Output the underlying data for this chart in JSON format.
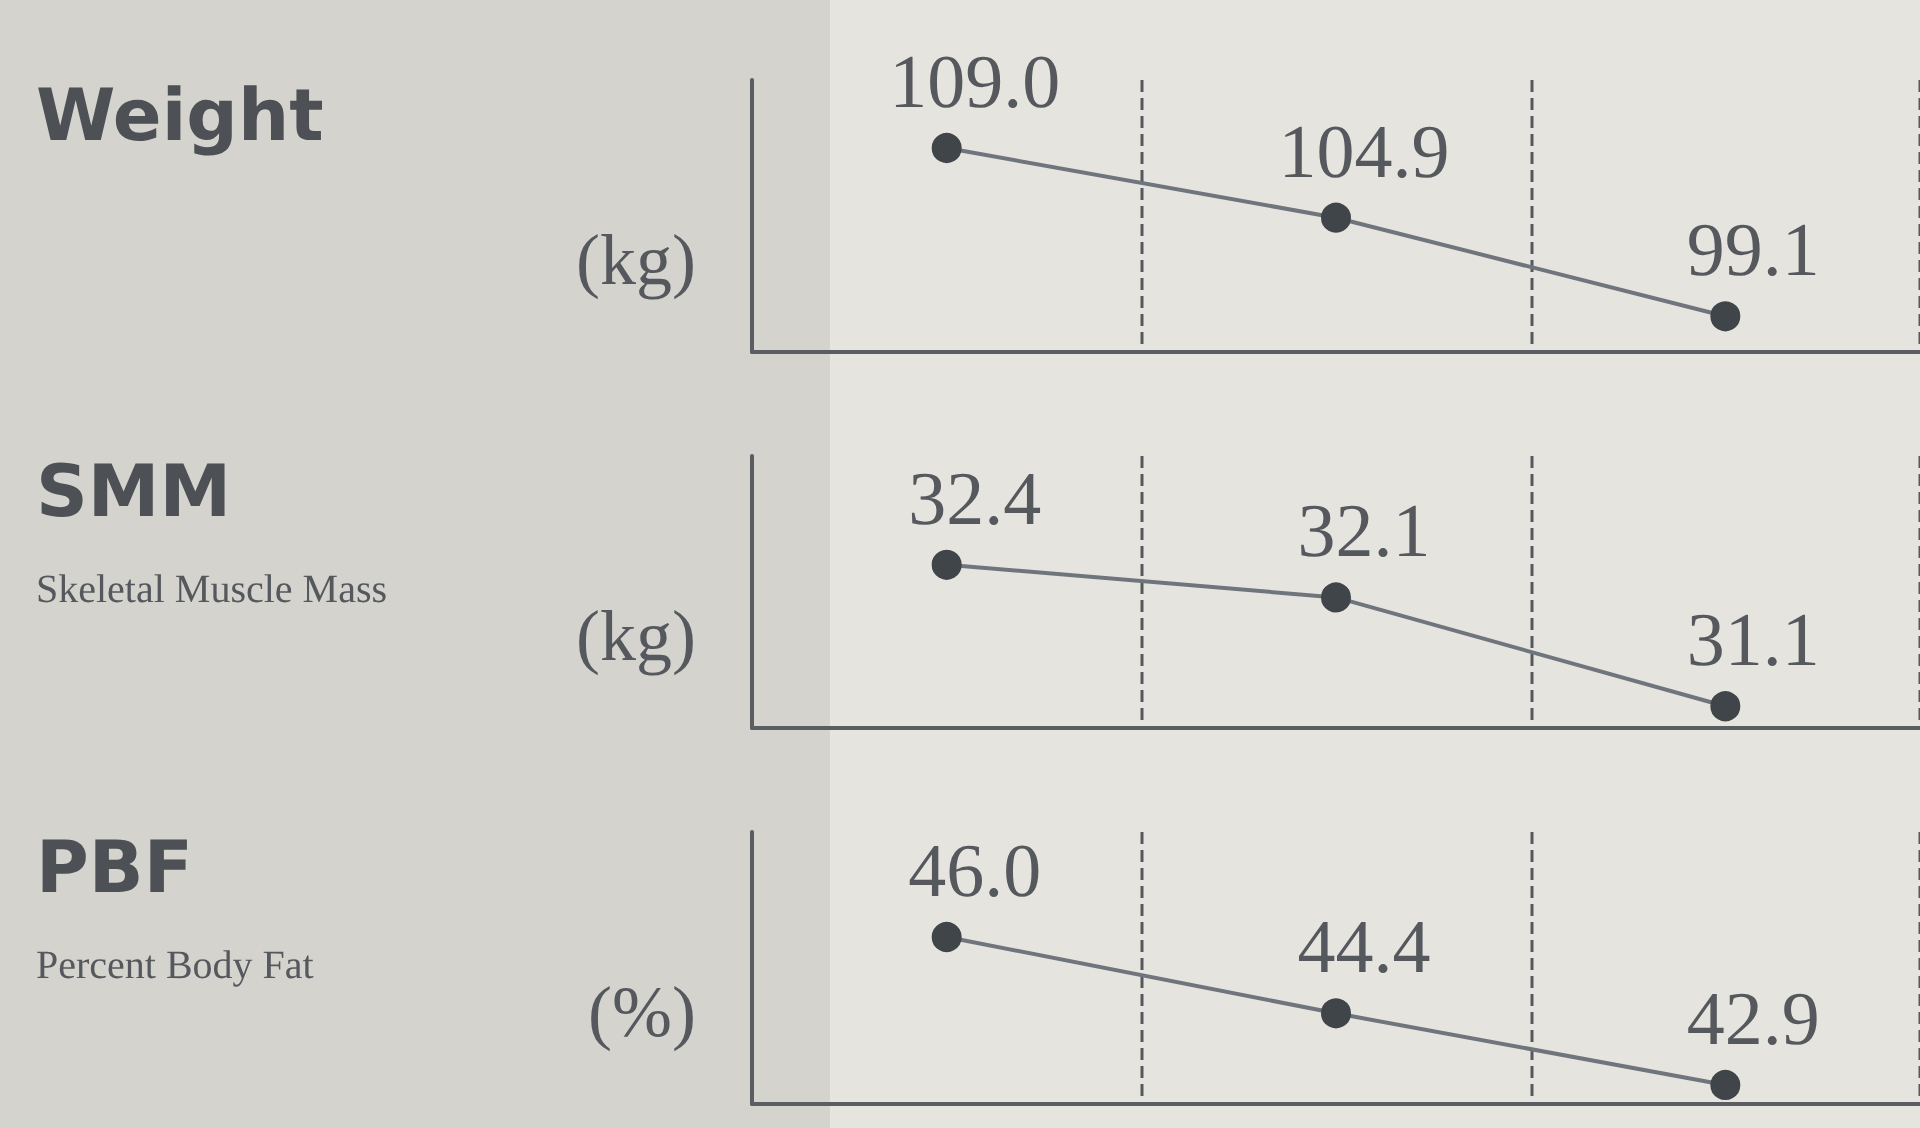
{
  "chart_data": [
    {
      "type": "line",
      "title": "Weight",
      "ylabel": "(kg)",
      "categories": [
        null,
        null,
        null
      ],
      "values": [
        109.0,
        104.9,
        99.1
      ],
      "value_labels": [
        "109.0",
        "104.9",
        "99.1"
      ],
      "color": "#6f757c",
      "ylim": [
        97,
        113
      ],
      "tick_labels": false,
      "grid": "x",
      "marker": "circle",
      "line_style": "solid"
    },
    {
      "type": "line",
      "annotations": [
        "SMM",
        "Skeletal Muscle Mass"
      ],
      "ylabel": "(kg)",
      "categories": [
        null,
        null,
        null
      ],
      "values": [
        32.4,
        32.1,
        31.1
      ],
      "value_labels": [
        "32.4",
        "32.1",
        "31.1"
      ],
      "color": "#6f757c",
      "ylim": [
        30.9,
        33.4
      ],
      "tick_labels": false,
      "grid": "x",
      "marker": "circle",
      "line_style": "solid"
    },
    {
      "type": "line",
      "annotations": [
        "PBF",
        "Percent Body Fat"
      ],
      "ylabel": "(%)",
      "categories": [
        null,
        null,
        null
      ],
      "values": [
        46.0,
        44.4,
        42.9
      ],
      "value_labels": [
        "46.0",
        "44.4",
        "42.9"
      ],
      "color": "#6f757c",
      "ylim": [
        42.5,
        48.2
      ],
      "tick_labels": false,
      "grid": "x",
      "marker": "circle",
      "line_style": "solid"
    }
  ]
}
